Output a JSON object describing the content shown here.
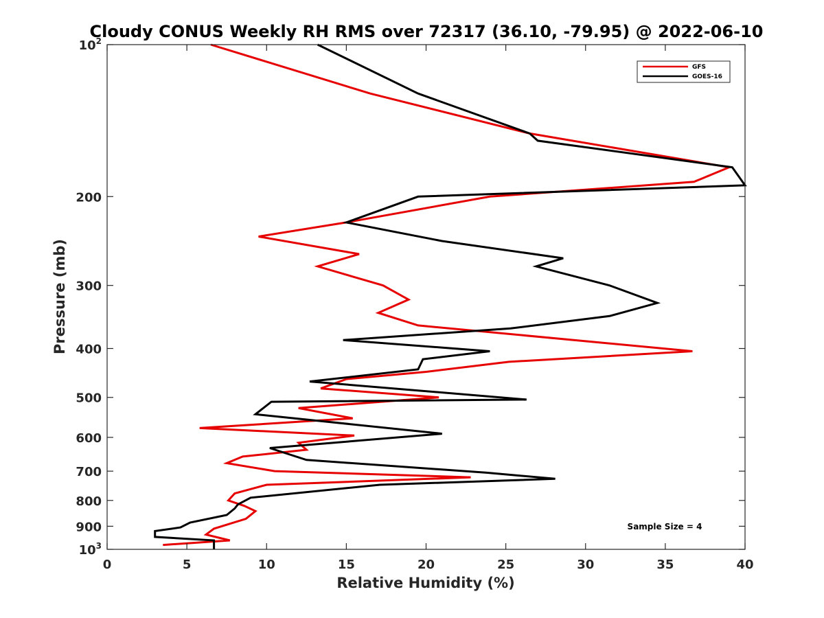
{
  "chart_data": {
    "type": "line",
    "title": "Cloudy CONUS Weekly RH RMS over 72317 (36.10, -79.95) @ 2022-06-10",
    "xlabel": "Relative Humidity (%)",
    "ylabel": "Pressure (mb)",
    "xlim": [
      0,
      40
    ],
    "ylim": [
      100,
      1000
    ],
    "y_scale": "log",
    "y_reversed": true,
    "x_ticks": [
      "0",
      "5",
      "10",
      "15",
      "20",
      "25",
      "30",
      "35",
      "40"
    ],
    "y_ticks": [
      {
        "value": 100,
        "base": "10",
        "exp": "2"
      },
      {
        "value": 200,
        "label": "200"
      },
      {
        "value": 300,
        "label": "300"
      },
      {
        "value": 400,
        "label": "400"
      },
      {
        "value": 500,
        "label": "500"
      },
      {
        "value": 600,
        "label": "600"
      },
      {
        "value": 700,
        "label": "700"
      },
      {
        "value": 800,
        "label": "800"
      },
      {
        "value": 900,
        "label": "900"
      },
      {
        "value": 1000,
        "base": "10",
        "exp": "3"
      }
    ],
    "grid": false,
    "legend_position": "top-right",
    "annotation": "Sample Size = 4",
    "series": [
      {
        "name": "GFS",
        "color": "#e60000",
        "points": [
          [
            6.5,
            100
          ],
          [
            16.5,
            125
          ],
          [
            26.5,
            150
          ],
          [
            39.0,
            175
          ],
          [
            36.8,
            187
          ],
          [
            24.0,
            200
          ],
          [
            15.0,
            225
          ],
          [
            9.5,
            240
          ],
          [
            15.8,
            260
          ],
          [
            13.2,
            275
          ],
          [
            17.3,
            300
          ],
          [
            18.9,
            320
          ],
          [
            17.0,
            340
          ],
          [
            19.5,
            360
          ],
          [
            36.7,
            405
          ],
          [
            25.2,
            425
          ],
          [
            20.0,
            445
          ],
          [
            15.0,
            460
          ],
          [
            13.4,
            480
          ],
          [
            20.8,
            500
          ],
          [
            12.0,
            525
          ],
          [
            15.4,
            550
          ],
          [
            5.8,
            575
          ],
          [
            15.5,
            595
          ],
          [
            12.0,
            615
          ],
          [
            12.5,
            635
          ],
          [
            8.5,
            655
          ],
          [
            7.5,
            675
          ],
          [
            10.5,
            700
          ],
          [
            22.8,
            720
          ],
          [
            10.0,
            745
          ],
          [
            8.0,
            775
          ],
          [
            7.6,
            800
          ],
          [
            8.6,
            820
          ],
          [
            9.3,
            840
          ],
          [
            8.7,
            870
          ],
          [
            6.7,
            910
          ],
          [
            6.2,
            935
          ],
          [
            7.7,
            960
          ],
          [
            3.5,
            980
          ]
        ]
      },
      {
        "name": "GOES-16",
        "color": "#000000",
        "points": [
          [
            13.2,
            100
          ],
          [
            19.5,
            125
          ],
          [
            26.5,
            150
          ],
          [
            27.0,
            155
          ],
          [
            39.2,
            175
          ],
          [
            40.0,
            190
          ],
          [
            19.5,
            200
          ],
          [
            15.0,
            225
          ],
          [
            21.0,
            245
          ],
          [
            28.6,
            265
          ],
          [
            26.9,
            275
          ],
          [
            31.5,
            300
          ],
          [
            34.5,
            325
          ],
          [
            31.5,
            345
          ],
          [
            25.3,
            365
          ],
          [
            14.8,
            385
          ],
          [
            24.0,
            405
          ],
          [
            19.8,
            420
          ],
          [
            19.5,
            440
          ],
          [
            12.7,
            465
          ],
          [
            26.3,
            505
          ],
          [
            10.3,
            510
          ],
          [
            9.3,
            540
          ],
          [
            21.0,
            590
          ],
          [
            10.2,
            630
          ],
          [
            12.5,
            665
          ],
          [
            23.8,
            705
          ],
          [
            28.1,
            725
          ],
          [
            17.1,
            745
          ],
          [
            9.0,
            790
          ],
          [
            8.2,
            815
          ],
          [
            8.0,
            830
          ],
          [
            7.5,
            855
          ],
          [
            5.2,
            885
          ],
          [
            4.6,
            905
          ],
          [
            3.0,
            920
          ],
          [
            3.0,
            945
          ],
          [
            6.7,
            960
          ],
          [
            6.7,
            1000
          ]
        ]
      }
    ]
  }
}
